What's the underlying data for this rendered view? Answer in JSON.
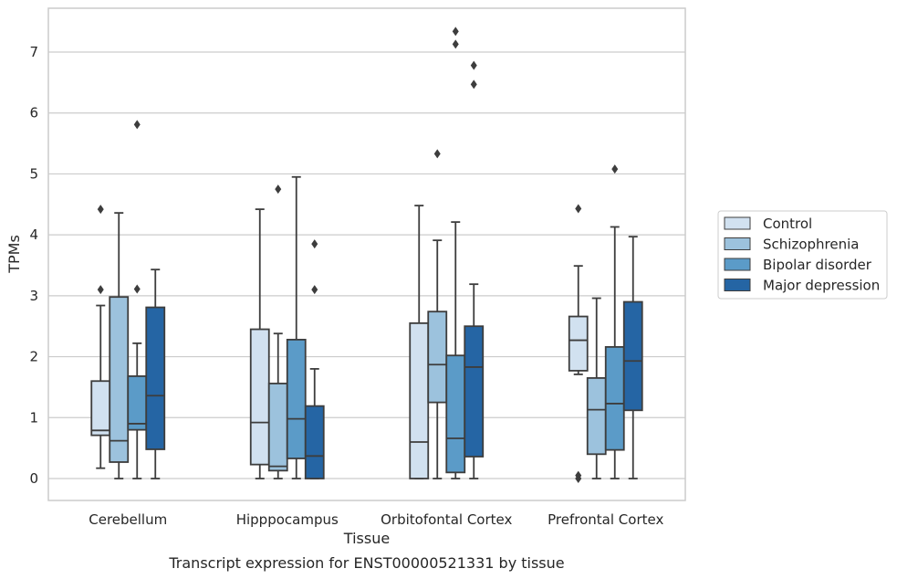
{
  "caption": "Transcript expression for ENST00000521331 by tissue",
  "chart_data": {
    "type": "box",
    "xlabel": "Tissue",
    "ylabel": "TPMs",
    "ylim": [
      -0.35,
      7.7
    ],
    "yticks": [
      0,
      1,
      2,
      3,
      4,
      5,
      6,
      7
    ],
    "grid": "horizontal",
    "legend_position": "right",
    "categories": [
      "Cerebellum",
      "Hipppocampus",
      "Orbitofontal Cortex",
      "Prefrontal Cortex"
    ],
    "series": [
      {
        "name": "Control",
        "color": "#d1e1f0",
        "boxes": [
          {
            "whisker_low": 0.17,
            "q1": 0.71,
            "median": 0.79,
            "q3": 1.6,
            "whisker_high": 2.84,
            "outliers": [
              3.1,
              4.42
            ]
          },
          {
            "whisker_low": 0.0,
            "q1": 0.23,
            "median": 0.92,
            "q3": 2.45,
            "whisker_high": 4.42,
            "outliers": []
          },
          {
            "whisker_low": 0.0,
            "q1": 0.0,
            "median": 0.6,
            "q3": 2.55,
            "whisker_high": 4.48,
            "outliers": []
          },
          {
            "whisker_low": 1.71,
            "q1": 1.77,
            "median": 2.27,
            "q3": 2.66,
            "whisker_high": 3.49,
            "outliers": [
              0.0,
              0.05,
              4.43
            ]
          }
        ]
      },
      {
        "name": "Schizophrenia",
        "color": "#9cc2dd",
        "boxes": [
          {
            "whisker_low": 0.0,
            "q1": 0.27,
            "median": 0.62,
            "q3": 2.98,
            "whisker_high": 4.36,
            "outliers": []
          },
          {
            "whisker_low": 0.0,
            "q1": 0.13,
            "median": 0.2,
            "q3": 1.56,
            "whisker_high": 2.38,
            "outliers": [
              4.75
            ]
          },
          {
            "whisker_low": 0.0,
            "q1": 1.25,
            "median": 1.87,
            "q3": 2.74,
            "whisker_high": 3.91,
            "outliers": [
              5.33
            ]
          },
          {
            "whisker_low": 0.0,
            "q1": 0.4,
            "median": 1.13,
            "q3": 1.65,
            "whisker_high": 2.96,
            "outliers": []
          }
        ]
      },
      {
        "name": "Bipolar disorder",
        "color": "#5b9bc8",
        "boxes": [
          {
            "whisker_low": 0.0,
            "q1": 0.8,
            "median": 0.9,
            "q3": 1.68,
            "whisker_high": 2.22,
            "outliers": [
              3.11,
              5.81
            ]
          },
          {
            "whisker_low": 0.0,
            "q1": 0.33,
            "median": 0.98,
            "q3": 2.28,
            "whisker_high": 4.95,
            "outliers": []
          },
          {
            "whisker_low": 0.0,
            "q1": 0.1,
            "median": 0.66,
            "q3": 2.02,
            "whisker_high": 4.21,
            "outliers": [
              7.13,
              7.34
            ]
          },
          {
            "whisker_low": 0.0,
            "q1": 0.47,
            "median": 1.23,
            "q3": 2.16,
            "whisker_high": 4.13,
            "outliers": [
              5.08
            ]
          }
        ]
      },
      {
        "name": "Major depression",
        "color": "#2565a4",
        "boxes": [
          {
            "whisker_low": 0.0,
            "q1": 0.48,
            "median": 1.36,
            "q3": 2.81,
            "whisker_high": 3.43,
            "outliers": []
          },
          {
            "whisker_low": 0.0,
            "q1": 0.0,
            "median": 0.37,
            "q3": 1.19,
            "whisker_high": 1.8,
            "outliers": [
              3.1,
              3.85
            ]
          },
          {
            "whisker_low": 0.0,
            "q1": 0.36,
            "median": 1.83,
            "q3": 2.5,
            "whisker_high": 3.19,
            "outliers": [
              6.47,
              6.78
            ]
          },
          {
            "whisker_low": 0.0,
            "q1": 1.12,
            "median": 1.93,
            "q3": 2.9,
            "whisker_high": 3.97,
            "outliers": []
          }
        ]
      }
    ]
  }
}
